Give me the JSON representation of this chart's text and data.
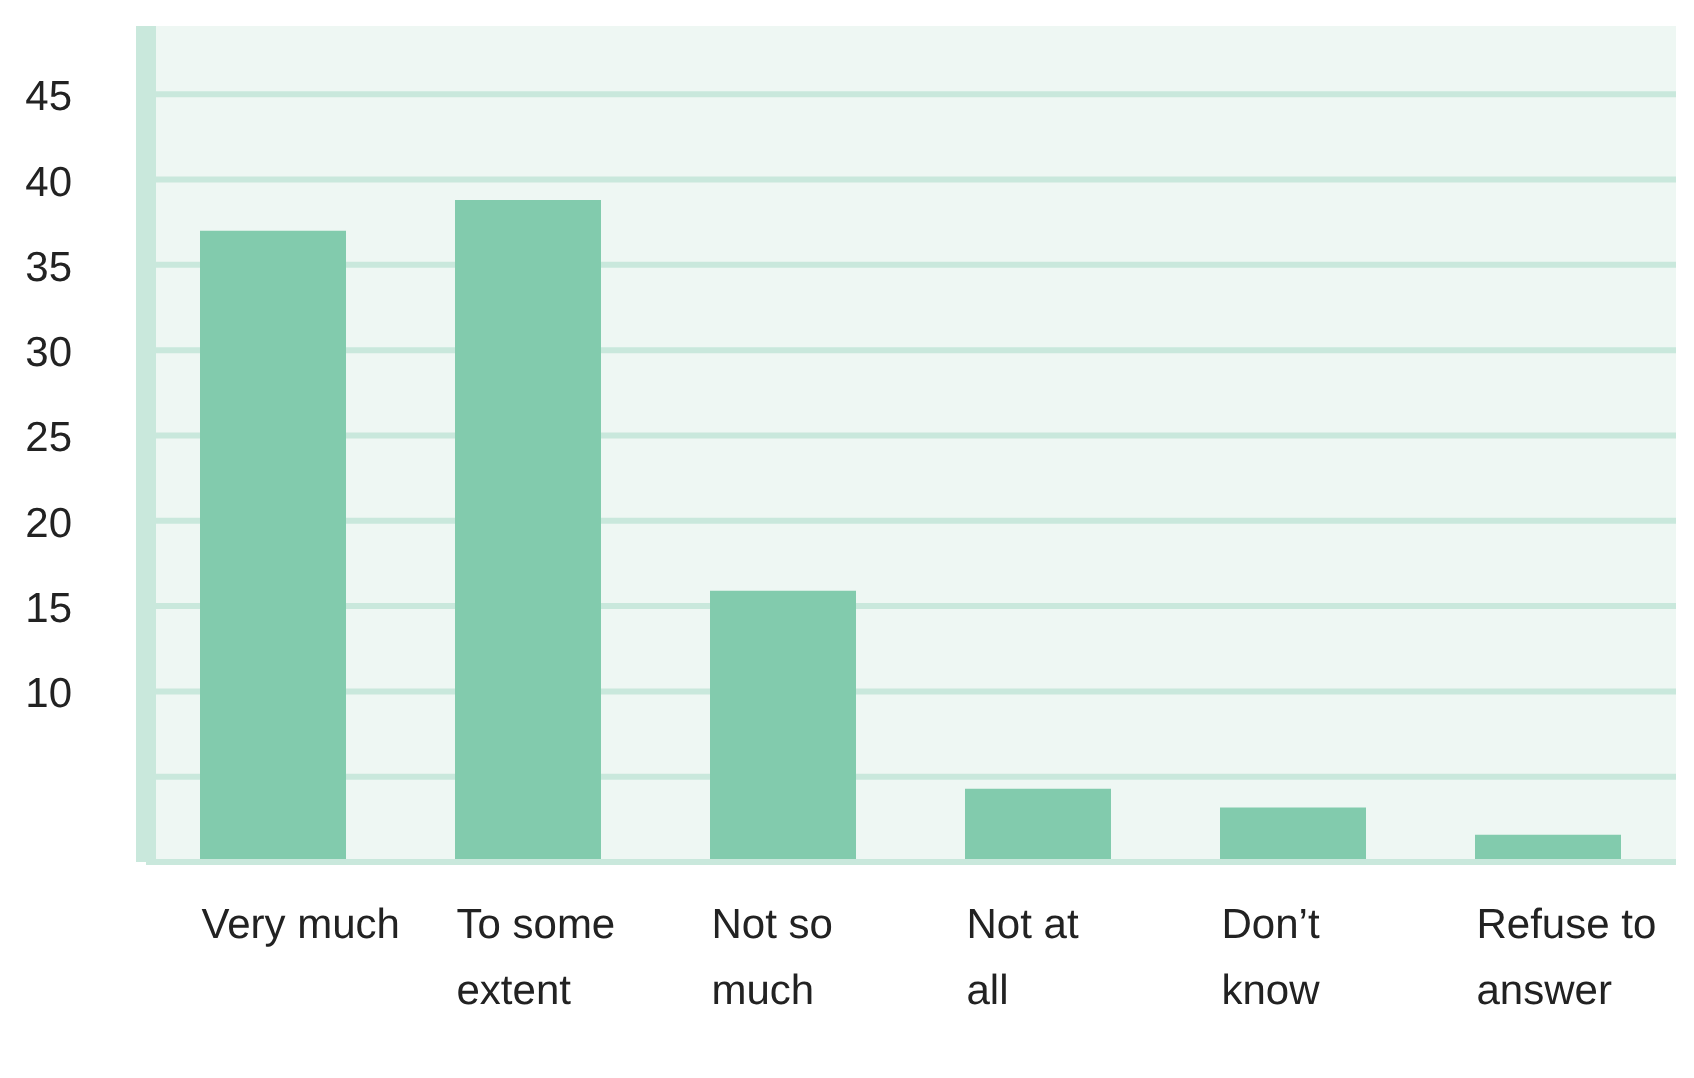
{
  "chart_data": {
    "type": "bar",
    "categories": [
      "Very much",
      "To some extent",
      "Not so much",
      "Not at all",
      "Don’t know",
      "Refuse to answer"
    ],
    "values": [
      37.0,
      38.8,
      15.9,
      4.3,
      3.2,
      1.6
    ],
    "color": "#82cbad",
    "ylim": [
      0,
      49
    ],
    "yticks": [
      {
        "value": 0,
        "label": null
      },
      {
        "value": 5,
        "label": null
      },
      10,
      15,
      20,
      25,
      30,
      35,
      40,
      45
    ],
    "grid": "y",
    "legend": false
  }
}
